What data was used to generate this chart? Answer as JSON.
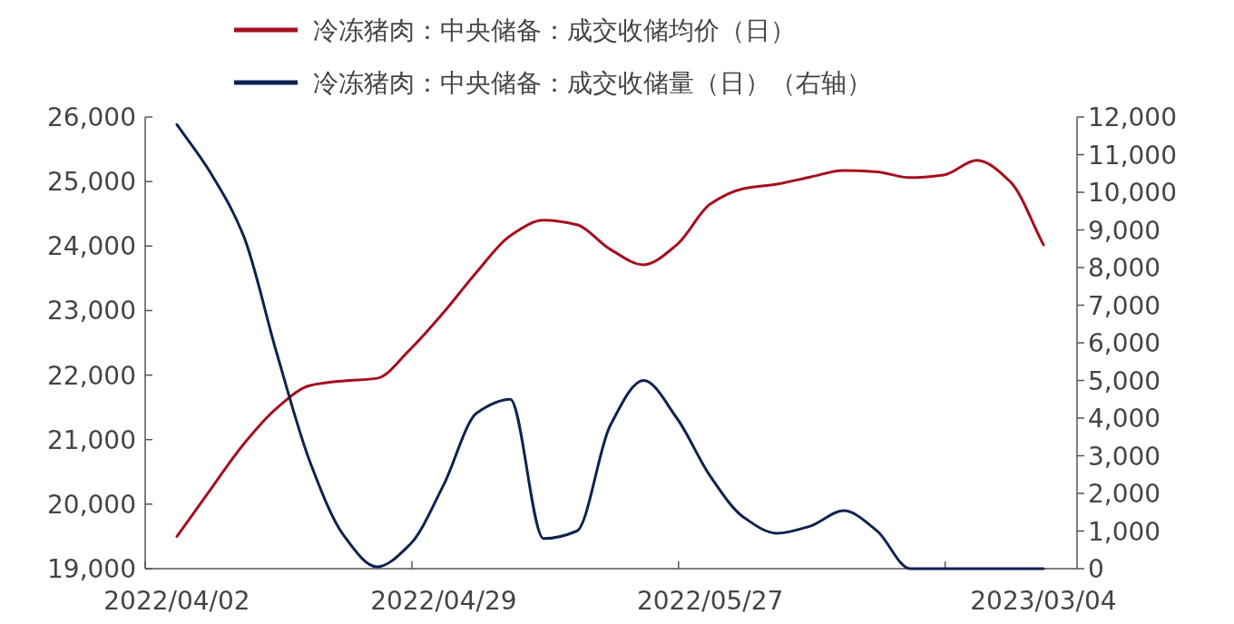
{
  "chart_data": {
    "type": "line",
    "categories": [
      "2022/04/02",
      null,
      null,
      null,
      null,
      null,
      null,
      null,
      "2022/04/29",
      null,
      null,
      null,
      null,
      null,
      null,
      null,
      "2022/05/27",
      null,
      null,
      null,
      null,
      null,
      null,
      null,
      null,
      null,
      "2023/03/04"
    ],
    "series": [
      {
        "name": "冷冻猪肉：中央储备：成交收储均价（日）",
        "color": "#a50f1e",
        "values": [
          19500,
          20220,
          20930,
          21490,
          21840,
          21910,
          21950,
          22400,
          22970,
          23600,
          24160,
          24400,
          24330,
          23950,
          23710,
          24020,
          24650,
          24890,
          24960,
          25070,
          25170,
          25150,
          25060,
          25100,
          25330,
          25000,
          24020
        ]
      },
      {
        "name": "冷冻猪肉：中央储备：成交收储量（日）（右轴）",
        "color": "#0f2250",
        "axis": "y2",
        "values": [
          11800,
          10530,
          8840,
          5710,
          2820,
          890,
          50,
          650,
          2220,
          4140,
          4500,
          800,
          1000,
          3800,
          5000,
          4000,
          2460,
          1370,
          940,
          1130,
          1540,
          1010,
          0,
          0,
          0,
          0,
          0
        ]
      }
    ],
    "ylim": [
      19000,
      26000
    ],
    "yticks": [
      {
        "value": 19000,
        "label": "19,000"
      },
      {
        "value": 20000,
        "label": "20,000"
      },
      {
        "value": 21000,
        "label": "21,000"
      },
      {
        "value": 22000,
        "label": "22,000"
      },
      {
        "value": 23000,
        "label": "23,000"
      },
      {
        "value": 24000,
        "label": "24,000"
      },
      {
        "value": 25000,
        "label": "25,000"
      },
      {
        "value": 26000,
        "label": "26,000"
      }
    ],
    "y2lim": [
      0,
      12000
    ],
    "y2ticks": [
      0,
      {
        "value": 1000,
        "label": "1,000"
      },
      {
        "value": 2000,
        "label": "2,000"
      },
      {
        "value": 3000,
        "label": "3,000"
      },
      {
        "value": 4000,
        "label": "4,000"
      },
      {
        "value": 5000,
        "label": "5,000"
      },
      {
        "value": 6000,
        "label": "6,000"
      },
      {
        "value": 7000,
        "label": "7,000"
      },
      {
        "value": 8000,
        "label": "8,000"
      },
      {
        "value": 9000,
        "label": "9,000"
      },
      {
        "value": 10000,
        "label": "10,000"
      },
      {
        "value": 11000,
        "label": "11,000"
      },
      {
        "value": 12000,
        "label": "12,000"
      }
    ],
    "grid": false,
    "legend": "top",
    "marker": "none",
    "line_style": "solid"
  }
}
